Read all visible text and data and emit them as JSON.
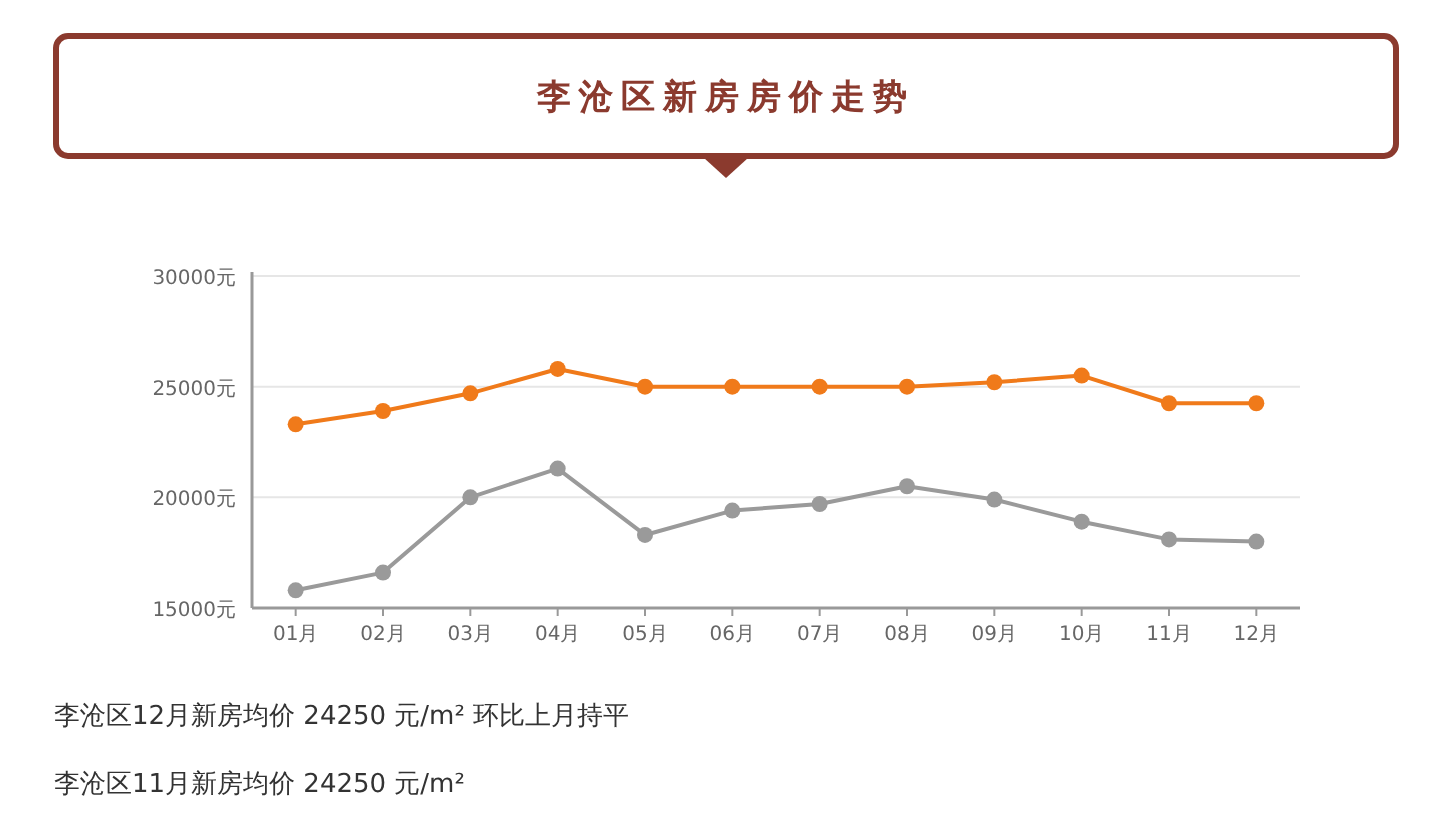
{
  "chart_data": {
    "type": "line",
    "title": "李沧区新房房价走势",
    "categories": [
      "01月",
      "02月",
      "03月",
      "04月",
      "05月",
      "06月",
      "07月",
      "08月",
      "09月",
      "10月",
      "11月",
      "12月"
    ],
    "series": [
      {
        "color": "#f07a1a",
        "values": [
          23300,
          23900,
          24700,
          25800,
          25000,
          25000,
          25000,
          25000,
          25200,
          25500,
          24250,
          24250
        ]
      },
      {
        "color": "#9a9a9a",
        "values": [
          15800,
          16600,
          20000,
          21300,
          18300,
          19400,
          19700,
          20500,
          19900,
          18900,
          18100,
          18000
        ]
      }
    ],
    "ylim": [
      15000,
      30000
    ],
    "yticks": [
      {
        "value": 15000,
        "label": "15000元"
      },
      {
        "value": 20000,
        "label": "20000元"
      },
      {
        "value": 25000,
        "label": "25000元"
      },
      {
        "value": 30000,
        "label": "30000元"
      }
    ],
    "grid": "y",
    "marker": "circle",
    "line_style": "solid",
    "annotations": [
      "李沧区12月新房均价 24250 元/m² 环比上月持平",
      "李沧区11月新房均价 24250 元/m²"
    ]
  }
}
